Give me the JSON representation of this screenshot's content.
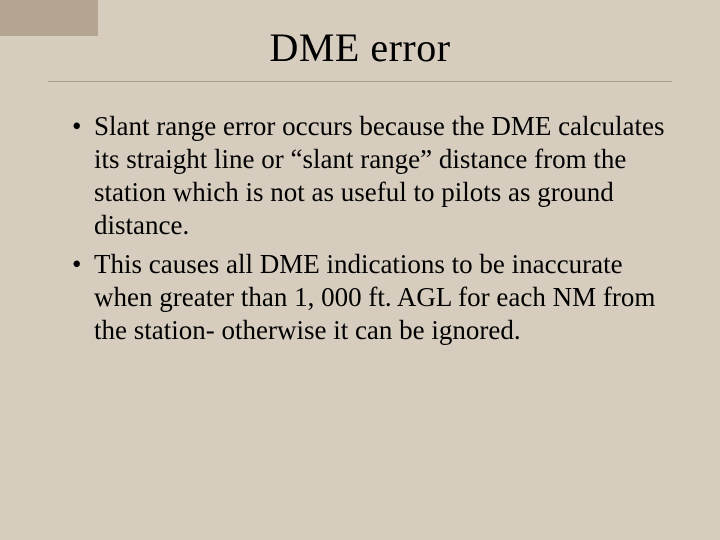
{
  "slide": {
    "title": "DME error",
    "bullets": [
      "Slant range error occurs because the DME calculates its straight line or “slant range” distance from the station which is not as useful to pilots as ground distance.",
      "This causes all DME indications to be inaccurate when greater than 1, 000 ft. AGL for each NM from the station- otherwise it can be ignored."
    ]
  },
  "style": {
    "background_color": "#d6cdbf",
    "corner_tab_color": "#b3a58f",
    "rule_color": "#a89f90",
    "text_color": "#000000",
    "title_fontsize_pt": 30,
    "body_fontsize_pt": 20,
    "font_family": "Times New Roman"
  }
}
